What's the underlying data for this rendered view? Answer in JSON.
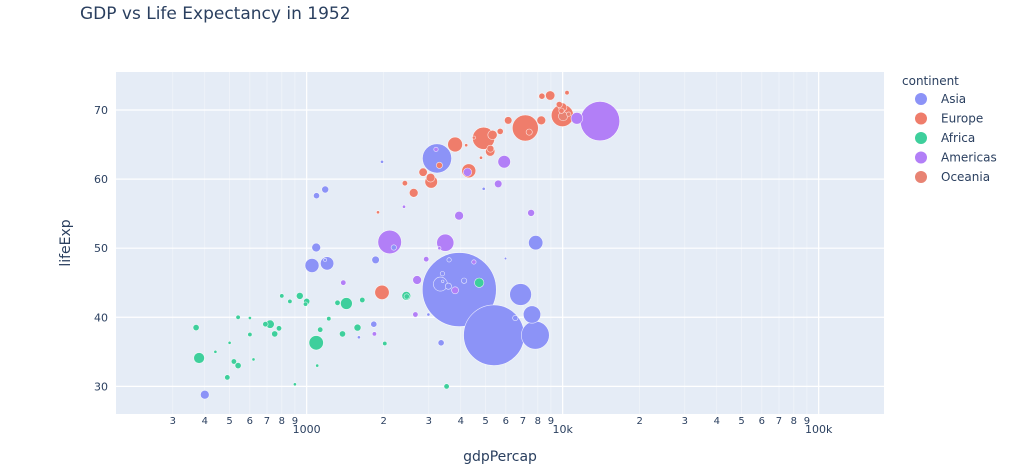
{
  "chart_data": {
    "type": "scatter",
    "title": "GDP vs Life Expectancy in 1952",
    "xlabel": "gdpPercap",
    "ylabel": "lifeExp",
    "x_scale": "log",
    "xlim": [
      180,
      180000
    ],
    "ylim": [
      26,
      75.5
    ],
    "x_major_ticks": [
      {
        "value": 1000,
        "label": "1000"
      },
      {
        "value": 10000,
        "label": "10k"
      },
      {
        "value": 100000,
        "label": "100k"
      }
    ],
    "x_minor_ticks": [
      {
        "value": 300,
        "label": "3"
      },
      {
        "value": 400,
        "label": "4"
      },
      {
        "value": 500,
        "label": "5"
      },
      {
        "value": 600,
        "label": "6"
      },
      {
        "value": 700,
        "label": "7"
      },
      {
        "value": 800,
        "label": "8"
      },
      {
        "value": 900,
        "label": "9"
      },
      {
        "value": 2000,
        "label": "2"
      },
      {
        "value": 3000,
        "label": "3"
      },
      {
        "value": 4000,
        "label": "4"
      },
      {
        "value": 5000,
        "label": "5"
      },
      {
        "value": 6000,
        "label": "6"
      },
      {
        "value": 7000,
        "label": "7"
      },
      {
        "value": 8000,
        "label": "8"
      },
      {
        "value": 9000,
        "label": "9"
      },
      {
        "value": 20000,
        "label": "2"
      },
      {
        "value": 30000,
        "label": "3"
      },
      {
        "value": 40000,
        "label": "4"
      },
      {
        "value": 50000,
        "label": "5"
      },
      {
        "value": 60000,
        "label": "6"
      },
      {
        "value": 70000,
        "label": "7"
      },
      {
        "value": 80000,
        "label": "8"
      },
      {
        "value": 90000,
        "label": "9"
      }
    ],
    "y_ticks": [
      30,
      40,
      50,
      60,
      70
    ],
    "grid": true,
    "legend_title": "continent",
    "legend_position": "right",
    "size_encodes": "pop",
    "series": [
      {
        "name": "Asia",
        "color": "#8c93f7",
        "points": [
          [
            3947,
            44.0,
            556
          ],
          [
            5390,
            37.4,
            372
          ],
          [
            7820,
            37.4,
            80
          ],
          [
            6850,
            43.3,
            48
          ],
          [
            7590,
            40.4,
            31
          ],
          [
            3230,
            63.0,
            86
          ],
          [
            3330,
            44.8,
            20
          ],
          [
            7845,
            50.8,
            21
          ],
          [
            1049,
            47.5,
            20
          ],
          [
            1202,
            47.8,
            18
          ],
          [
            1093,
            57.6,
            4
          ],
          [
            1182,
            58.5,
            5
          ],
          [
            3600,
            48.3,
            2
          ],
          [
            3390,
            46.3,
            2
          ],
          [
            2190,
            50.1,
            3
          ],
          [
            400,
            28.8,
            8
          ],
          [
            4120,
            45.3,
            3
          ],
          [
            4915,
            58.6,
            1
          ],
          [
            6530,
            39.9,
            3
          ],
          [
            3580,
            44.5,
            4
          ],
          [
            1970,
            62.5,
            1
          ],
          [
            1090,
            50.1,
            8
          ],
          [
            3350,
            36.3,
            4
          ],
          [
            1600,
            37.1,
            1
          ],
          [
            1860,
            48.3,
            6
          ],
          [
            1830,
            39.0,
            4
          ],
          [
            5980,
            48.5,
            0.5
          ],
          [
            2990,
            40.4,
            1
          ],
          [
            3400,
            45.2,
            0.5
          ],
          [
            1180,
            48.3,
            1
          ]
        ]
      },
      {
        "name": "Europe",
        "color": "#ef7d6b",
        "points": [
          [
            7144,
            67.4,
            69
          ],
          [
            4913,
            65.9,
            50
          ],
          [
            9979,
            69.2,
            50
          ],
          [
            3801,
            65.0,
            22
          ],
          [
            5210,
            64.0,
            9
          ],
          [
            4300,
            61.2,
            20
          ],
          [
            3065,
            59.6,
            16
          ],
          [
            2850,
            61.0,
            7
          ],
          [
            8940,
            72.1,
            9
          ],
          [
            10000,
            70.4,
            7
          ],
          [
            8250,
            68.5,
            8
          ],
          [
            5320,
            66.4,
            9
          ],
          [
            6130,
            68.5,
            6
          ],
          [
            7400,
            66.8,
            4
          ],
          [
            9700,
            70.8,
            4
          ],
          [
            5220,
            64.4,
            5
          ],
          [
            5700,
            66.9,
            4
          ],
          [
            3050,
            60.2,
            8
          ],
          [
            2620,
            58.0,
            8
          ],
          [
            8300,
            72.0,
            4
          ],
          [
            9900,
            69.9,
            3
          ],
          [
            10400,
            72.5,
            2
          ],
          [
            1900,
            55.2,
            1
          ],
          [
            2420,
            59.4,
            3
          ],
          [
            1970,
            43.6,
            21
          ],
          [
            3300,
            62.0,
            4
          ],
          [
            4200,
            64.9,
            1
          ],
          [
            4800,
            63.1,
            1
          ],
          [
            4500,
            66.0,
            1
          ]
        ]
      },
      {
        "name": "Africa",
        "color": "#3ecf9c",
        "points": [
          [
            1090,
            36.3,
            21
          ],
          [
            1430,
            42.0,
            14
          ],
          [
            2450,
            43.1,
            8
          ],
          [
            4720,
            45.0,
            9
          ],
          [
            380,
            34.1,
            12
          ],
          [
            370,
            38.5,
            4
          ],
          [
            940,
            43.1,
            5
          ],
          [
            1000,
            42.3,
            4
          ],
          [
            690,
            39.0,
            3
          ],
          [
            540,
            33.0,
            4
          ],
          [
            1650,
            42.5,
            3
          ],
          [
            750,
            37.6,
            4
          ],
          [
            490,
            31.3,
            3
          ],
          [
            520,
            33.6,
            3
          ],
          [
            720,
            39.0,
            7
          ],
          [
            600,
            37.5,
            2
          ],
          [
            780,
            38.4,
            3
          ],
          [
            860,
            42.3,
            2
          ],
          [
            1130,
            38.2,
            3
          ],
          [
            1220,
            39.8,
            2
          ],
          [
            1580,
            38.5,
            5
          ],
          [
            1380,
            37.6,
            4
          ],
          [
            2020,
            36.2,
            2
          ],
          [
            2460,
            43.0,
            3
          ],
          [
            3520,
            30.0,
            3
          ],
          [
            1320,
            42.1,
            3
          ],
          [
            990,
            41.9,
            2
          ],
          [
            600,
            39.9,
            1
          ],
          [
            500,
            36.3,
            1
          ],
          [
            620,
            33.9,
            1
          ],
          [
            1100,
            33.0,
            1
          ],
          [
            900,
            30.3,
            1
          ],
          [
            440,
            35.0,
            1
          ],
          [
            540,
            40.0,
            2
          ],
          [
            800,
            43.1,
            2
          ]
        ]
      },
      {
        "name": "Americas",
        "color": "#b27ff7",
        "points": [
          [
            13990,
            68.4,
            157
          ],
          [
            2110,
            50.9,
            57
          ],
          [
            3480,
            50.8,
            30
          ],
          [
            5910,
            62.5,
            16
          ],
          [
            11367,
            68.8,
            14
          ],
          [
            2700,
            45.4,
            8
          ],
          [
            3940,
            54.7,
            8
          ],
          [
            4250,
            61.0,
            7
          ],
          [
            7530,
            55.1,
            5
          ],
          [
            5600,
            59.3,
            6
          ],
          [
            3800,
            43.9,
            5
          ],
          [
            2660,
            40.4,
            3
          ],
          [
            1390,
            45.0,
            3
          ],
          [
            2930,
            48.4,
            3
          ],
          [
            1840,
            37.6,
            2
          ],
          [
            3200,
            64.3,
            2
          ],
          [
            4500,
            48.0,
            2
          ],
          [
            3300,
            50.0,
            1
          ],
          [
            2400,
            56.0,
            1
          ]
        ]
      },
      {
        "name": "Oceania",
        "color": "#e88373",
        "points": [
          [
            10040,
            69.1,
            8.7
          ],
          [
            10557,
            69.4,
            1.9
          ]
        ]
      }
    ]
  }
}
